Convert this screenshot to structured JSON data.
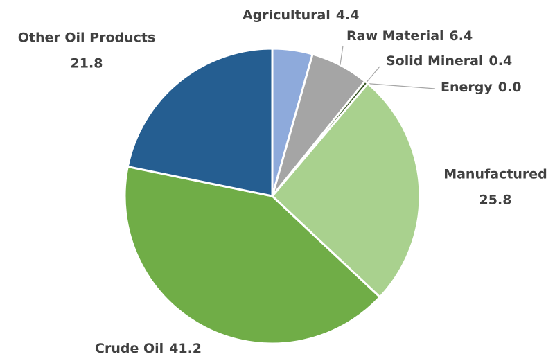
{
  "chart_data": {
    "type": "pie",
    "categories": [
      "Agricultural",
      "Raw Material",
      "Solid Mineral",
      "Energy",
      "Manufactured",
      "Crude Oil",
      "Other Oil Products"
    ],
    "values": [
      4.4,
      6.4,
      0.4,
      0.0,
      25.8,
      41.2,
      21.8
    ],
    "value_labels": [
      "4.4",
      "6.4",
      "0.4",
      "0.0",
      "25.8",
      "41.2",
      "21.8"
    ],
    "colors": [
      "#8eaadb",
      "#a5a5a5",
      "#375623",
      "#548235",
      "#a9d18e",
      "#70ad47",
      "#255e91"
    ]
  }
}
